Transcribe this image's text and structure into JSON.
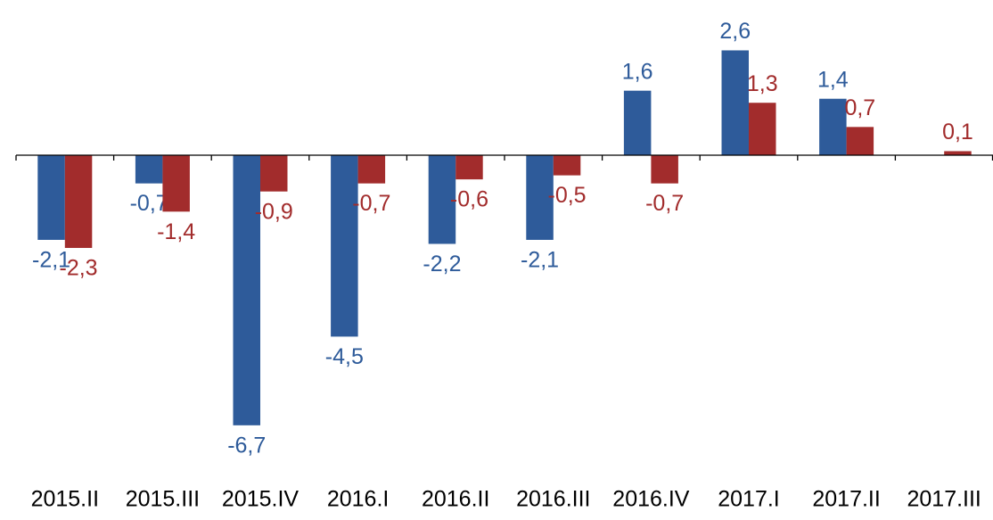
{
  "chart_data": {
    "type": "bar",
    "categories": [
      "2015.II",
      "2015.III",
      "2015.IV",
      "2016.I",
      "2016.II",
      "2016.III",
      "2016.IV",
      "2017.I",
      "2017.II",
      "2017.III"
    ],
    "series": [
      {
        "color": "#2e5b9a",
        "values": [
          -2.1,
          -0.7,
          -6.7,
          -4.5,
          -2.2,
          -2.1,
          1.6,
          2.6,
          1.4,
          null
        ],
        "value_labels": [
          "-2,1",
          "-0,7",
          "-6,7",
          "-4,5",
          "-2,2",
          "-2,1",
          "1,6",
          "2,6",
          "1,4",
          null
        ]
      },
      {
        "color": "#a22c2c",
        "values": [
          -2.3,
          -1.4,
          -0.9,
          -0.7,
          -0.6,
          -0.5,
          -0.7,
          1.3,
          0.7,
          0.1
        ],
        "value_labels": [
          "-2,3",
          "-1,4",
          "-0,9",
          "-0,7",
          "-0,6",
          "-0,5",
          "-0,7",
          "1,3",
          "0,7",
          "0,1"
        ]
      }
    ]
  }
}
